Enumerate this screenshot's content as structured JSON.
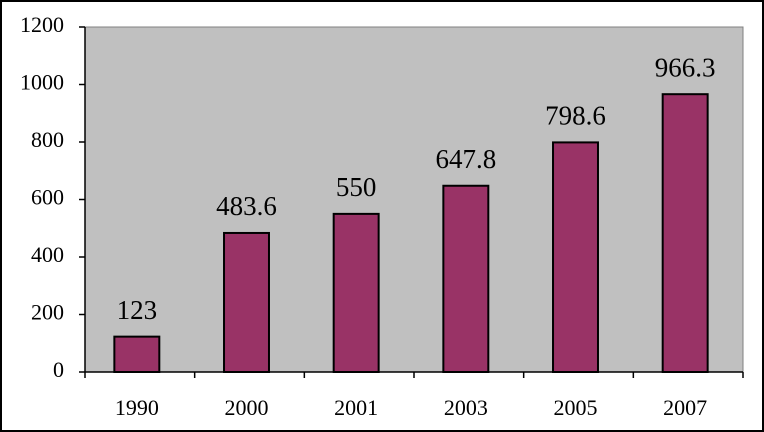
{
  "chart_data": {
    "type": "bar",
    "categories": [
      "1990",
      "2000",
      "2001",
      "2003",
      "2005",
      "2007"
    ],
    "values": [
      123,
      483.6,
      550,
      647.8,
      798.6,
      966.3
    ],
    "color": "#993366",
    "ylim": [
      0,
      1200
    ],
    "yticks": [
      0,
      200,
      400,
      600,
      800,
      1000,
      1200
    ],
    "grid": false
  }
}
